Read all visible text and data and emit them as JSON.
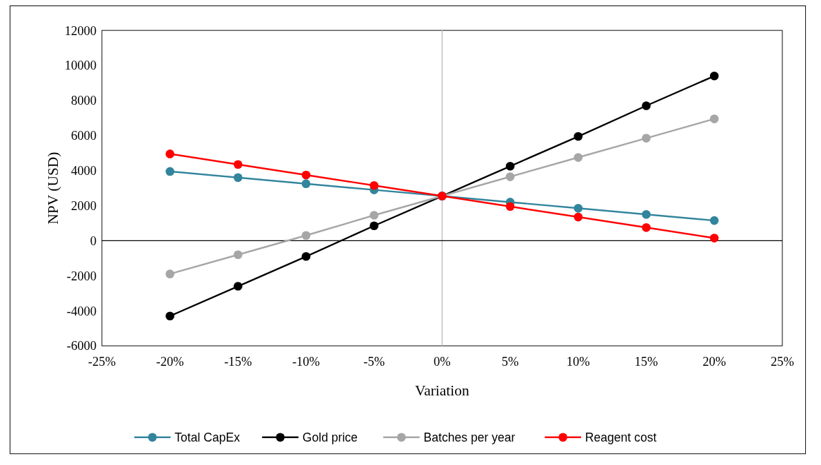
{
  "chart_data": {
    "type": "line",
    "xlabel": "Variation",
    "ylabel": "NPV (USD)",
    "x": [
      -20,
      -15,
      -10,
      -5,
      0,
      5,
      10,
      15,
      20
    ],
    "series": [
      {
        "name": "Total CapEx",
        "color": "#31859c",
        "values": [
          3950,
          3600,
          3250,
          2900,
          2550,
          2200,
          1850,
          1500,
          1150
        ]
      },
      {
        "name": "Gold price",
        "color": "#000000",
        "values": [
          -4300,
          -2600,
          -900,
          850,
          2550,
          4250,
          5950,
          7700,
          9400
        ]
      },
      {
        "name": "Batches per year",
        "color": "#a6a6a6",
        "values": [
          -1900,
          -800,
          300,
          1450,
          2550,
          3650,
          4750,
          5850,
          6950
        ]
      },
      {
        "name": "Reagent cost",
        "color": "#ff0000",
        "values": [
          4950,
          4350,
          3750,
          3150,
          2550,
          1950,
          1350,
          750,
          150
        ]
      }
    ],
    "xlim": [
      -25,
      25
    ],
    "xticks": [
      {
        "value": -25,
        "label": "-25%"
      },
      {
        "value": -20,
        "label": "-20%"
      },
      {
        "value": -15,
        "label": "-15%"
      },
      {
        "value": -10,
        "label": "-10%"
      },
      {
        "value": -5,
        "label": "-5%"
      },
      {
        "value": 0,
        "label": "0%"
      },
      {
        "value": 5,
        "label": "5%"
      },
      {
        "value": 10,
        "label": "10%"
      },
      {
        "value": 15,
        "label": "15%"
      },
      {
        "value": 20,
        "label": "20%"
      },
      {
        "value": 25,
        "label": "25%"
      }
    ],
    "ylim": [
      -6000,
      12000
    ],
    "yticks": [
      -6000,
      -4000,
      -2000,
      0,
      2000,
      4000,
      6000,
      8000,
      10000,
      12000
    ],
    "ref_lines": [
      {
        "axis": "x",
        "value": 0,
        "color": "#bfbfbf"
      },
      {
        "axis": "y",
        "value": 0,
        "color": "#000000"
      }
    ],
    "grid": false,
    "legend": "bottom",
    "marker": "circle",
    "line_style": "solid"
  }
}
